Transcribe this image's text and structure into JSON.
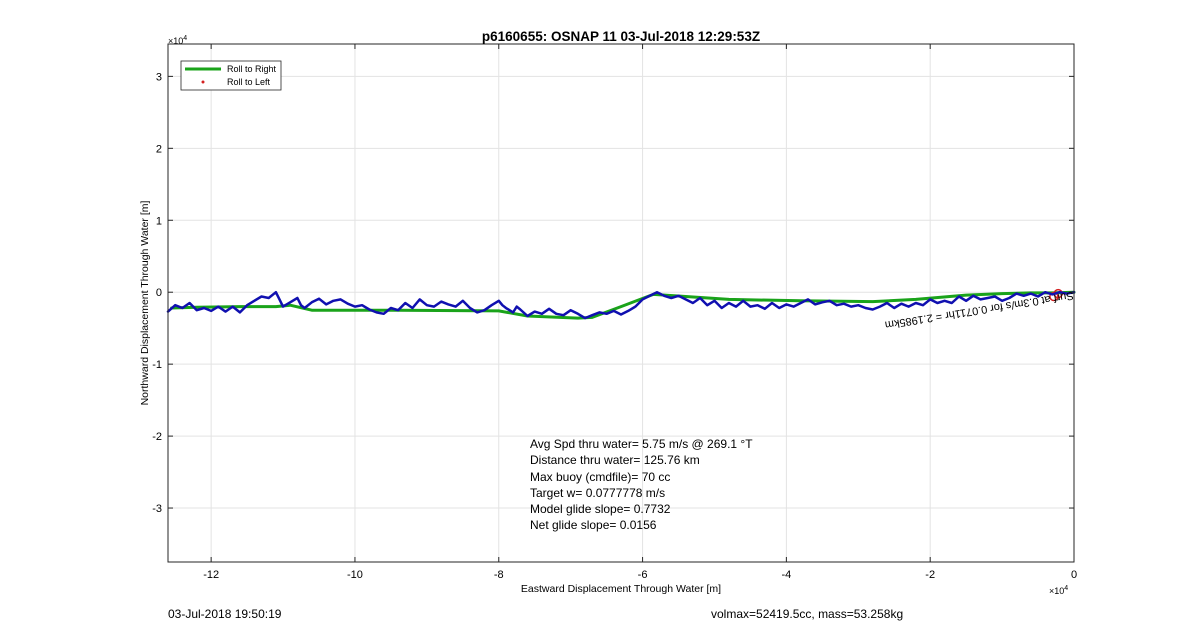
{
  "chart_data": {
    "type": "line",
    "title": "p6160655: OSNAP 11 03-Jul-2018 12:29:53Z",
    "xlabel": "Eastward Displacement Through Water [m]",
    "ylabel": "Northward Displacement Through Water [m]",
    "x_exponent_label": "×10",
    "y_exponent_label": "×10",
    "exponent": "4",
    "xlim": [
      -12.6,
      0
    ],
    "ylim": [
      -3.75,
      3.45
    ],
    "xticks": [
      -12,
      -10,
      -8,
      -6,
      -4,
      -2,
      0
    ],
    "yticks": [
      -3,
      -2,
      -1,
      0,
      1,
      2,
      3
    ],
    "xtick_labels": [
      "-12",
      "-10",
      "-8",
      "-6",
      "-4",
      "-2",
      "0"
    ],
    "ytick_labels": [
      "-3",
      "-2",
      "-1",
      "0",
      "1",
      "2",
      "3"
    ],
    "grid": true,
    "legend": {
      "placement": "top-left",
      "entries": [
        "Roll to Right",
        "Roll to Left"
      ]
    },
    "series": [
      {
        "name": "Roll to Right",
        "color": "#1aa31a",
        "style": "line",
        "x": [
          -12.55,
          -12.2,
          -11.6,
          -11.1,
          -10.9,
          -10.6,
          -10.0,
          -9.4,
          -8.0,
          -7.6,
          -6.9,
          -6.7,
          -6.3,
          -5.85,
          -5.4,
          -4.8,
          -3.8,
          -2.8,
          -2.2,
          -1.5,
          -1.0,
          -0.6,
          -0.3,
          0.0
        ],
        "y": [
          -0.22,
          -0.21,
          -0.2,
          -0.2,
          -0.18,
          -0.25,
          -0.25,
          -0.25,
          -0.26,
          -0.33,
          -0.36,
          -0.35,
          -0.2,
          -0.03,
          -0.06,
          -0.1,
          -0.12,
          -0.13,
          -0.1,
          -0.04,
          -0.02,
          -0.01,
          -0.01,
          0.0
        ]
      },
      {
        "name": "Roll to Left",
        "color": "#d42020",
        "style": "marker",
        "x": [
          -0.28,
          -0.22
        ],
        "y": [
          -0.06,
          -0.02
        ]
      },
      {
        "name": "",
        "color": "#1010b0",
        "style": "line",
        "x": [
          -12.6,
          -12.5,
          -12.4,
          -12.3,
          -12.2,
          -12.1,
          -12.0,
          -11.9,
          -11.8,
          -11.7,
          -11.6,
          -11.5,
          -11.4,
          -11.3,
          -11.2,
          -11.1,
          -11.05,
          -11.0,
          -10.9,
          -10.8,
          -10.75,
          -10.7,
          -10.6,
          -10.5,
          -10.4,
          -10.3,
          -10.2,
          -10.1,
          -10.0,
          -9.9,
          -9.8,
          -9.7,
          -9.6,
          -9.5,
          -9.4,
          -9.3,
          -9.2,
          -9.1,
          -9.0,
          -8.9,
          -8.8,
          -8.7,
          -8.6,
          -8.5,
          -8.4,
          -8.3,
          -8.2,
          -8.1,
          -8.0,
          -7.95,
          -7.9,
          -7.8,
          -7.75,
          -7.7,
          -7.6,
          -7.5,
          -7.4,
          -7.3,
          -7.2,
          -7.1,
          -7.0,
          -6.9,
          -6.8,
          -6.7,
          -6.6,
          -6.5,
          -6.4,
          -6.3,
          -6.2,
          -6.1,
          -6.0,
          -5.9,
          -5.8,
          -5.7,
          -5.6,
          -5.5,
          -5.4,
          -5.3,
          -5.2,
          -5.1,
          -5.0,
          -4.9,
          -4.8,
          -4.7,
          -4.6,
          -4.5,
          -4.4,
          -4.3,
          -4.2,
          -4.1,
          -4.0,
          -3.9,
          -3.8,
          -3.7,
          -3.6,
          -3.5,
          -3.4,
          -3.3,
          -3.2,
          -3.1,
          -3.0,
          -2.9,
          -2.8,
          -2.7,
          -2.6,
          -2.5,
          -2.4,
          -2.3,
          -2.2,
          -2.1,
          -2.0,
          -1.9,
          -1.8,
          -1.7,
          -1.6,
          -1.5,
          -1.4,
          -1.3,
          -1.2,
          -1.1,
          -1.0,
          -0.9,
          -0.8,
          -0.7,
          -0.6,
          -0.5,
          -0.4,
          -0.3,
          -0.2,
          -0.1,
          0.0
        ],
        "y": [
          -0.27,
          -0.18,
          -0.22,
          -0.15,
          -0.25,
          -0.22,
          -0.26,
          -0.2,
          -0.27,
          -0.2,
          -0.28,
          -0.18,
          -0.12,
          -0.06,
          -0.08,
          -0.0,
          -0.1,
          -0.2,
          -0.14,
          -0.08,
          -0.18,
          -0.22,
          -0.14,
          -0.09,
          -0.17,
          -0.12,
          -0.1,
          -0.16,
          -0.2,
          -0.18,
          -0.24,
          -0.28,
          -0.3,
          -0.22,
          -0.25,
          -0.15,
          -0.22,
          -0.1,
          -0.18,
          -0.2,
          -0.13,
          -0.17,
          -0.2,
          -0.12,
          -0.22,
          -0.28,
          -0.25,
          -0.18,
          -0.12,
          -0.18,
          -0.22,
          -0.28,
          -0.2,
          -0.24,
          -0.33,
          -0.27,
          -0.3,
          -0.23,
          -0.3,
          -0.32,
          -0.25,
          -0.3,
          -0.36,
          -0.32,
          -0.28,
          -0.3,
          -0.26,
          -0.31,
          -0.26,
          -0.2,
          -0.1,
          -0.05,
          -0.0,
          -0.05,
          -0.08,
          -0.05,
          -0.1,
          -0.15,
          -0.08,
          -0.18,
          -0.12,
          -0.22,
          -0.15,
          -0.2,
          -0.12,
          -0.2,
          -0.18,
          -0.23,
          -0.15,
          -0.22,
          -0.17,
          -0.2,
          -0.15,
          -0.1,
          -0.17,
          -0.14,
          -0.12,
          -0.18,
          -0.16,
          -0.2,
          -0.18,
          -0.22,
          -0.24,
          -0.2,
          -0.15,
          -0.22,
          -0.16,
          -0.2,
          -0.15,
          -0.18,
          -0.1,
          -0.15,
          -0.12,
          -0.15,
          -0.06,
          -0.12,
          -0.05,
          -0.1,
          -0.08,
          -0.06,
          -0.12,
          -0.08,
          -0.02,
          -0.05,
          -0.02,
          -0.06,
          -0.0,
          -0.03,
          -0.0,
          -0.02,
          -0.0
        ]
      }
    ],
    "annotations": [
      "Avg Spd thru water=  5.75 m/s @ 269.1 °T",
      "Distance thru water= 125.76 km",
      "Max buoy (cmdfile)= 70 cc",
      "Target w= 0.0777778 m/s",
      "Model glide slope= 0.7732",
      "Net glide slope= 0.0156"
    ],
    "rotated_annotation": "Surf at 0.3m/s for 0.0711hr = 2.1985km"
  },
  "footer": {
    "left": "03-Jul-2018 19:50:19",
    "right": "volmax=52419.5cc, mass=53.258kg"
  }
}
